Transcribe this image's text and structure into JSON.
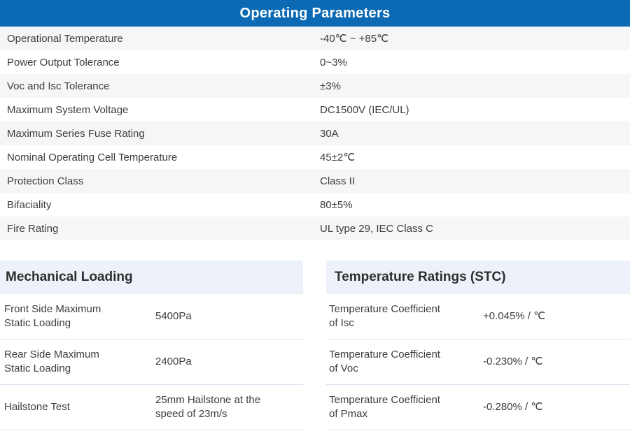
{
  "header": {
    "title": "Operating Parameters"
  },
  "colors": {
    "banner_bg": "#0b6ab3",
    "alt_row_bg": "#f7f6f6",
    "section_header_bg": "#edf2fa",
    "divider": "#dce5f2",
    "text": "#3d3d3d"
  },
  "operating": {
    "rows": [
      {
        "label": "Operational Temperature",
        "value": "-40℃ ~ +85℃"
      },
      {
        "label": "Power Output Tolerance",
        "value": "0~3%"
      },
      {
        "label": "Voc and Isc Tolerance",
        "value": "±3%"
      },
      {
        "label": "Maximum System Voltage",
        "value": "DC1500V (IEC/UL)"
      },
      {
        "label": "Maximum Series Fuse Rating",
        "value": "30A"
      },
      {
        "label": "Nominal Operating Cell Temperature",
        "value": "45±2℃"
      },
      {
        "label": "Protection Class",
        "value": "Class II"
      },
      {
        "label": "Bifaciality",
        "value": "80±5%"
      },
      {
        "label": "Fire Rating",
        "value": "UL type 29, IEC Class C"
      }
    ]
  },
  "mechanical": {
    "title": "Mechanical Loading",
    "rows": [
      {
        "label": "Front Side Maximum\nStatic Loading",
        "value": "5400Pa"
      },
      {
        "label": "Rear Side Maximum\nStatic Loading",
        "value": "2400Pa"
      },
      {
        "label": "Hailstone Test",
        "value": "25mm Hailstone at the\nspeed of 23m/s"
      }
    ]
  },
  "temperature": {
    "title": "Temperature Ratings (STC)",
    "rows": [
      {
        "label": "Temperature Coefficient\nof Isc",
        "value": "+0.045% / ℃"
      },
      {
        "label": "Temperature Coefficient\nof Voc",
        "value": "-0.230% / ℃"
      },
      {
        "label": "Temperature Coefficient\nof Pmax",
        "value": "-0.280% / ℃"
      }
    ]
  }
}
